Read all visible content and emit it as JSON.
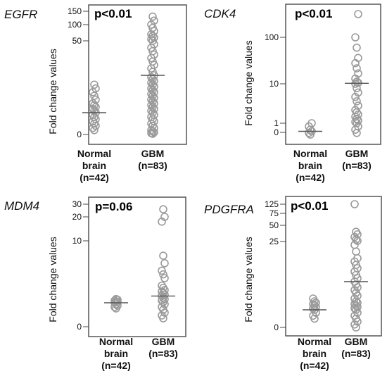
{
  "y_axis_label": "Fold change values",
  "chart_data": [
    {
      "type": "scatter",
      "gene": "EGFR",
      "p_value": "p<0.01",
      "ylabel": "Fold change values",
      "y_ticks": [
        "150",
        "100",
        "50",
        "0"
      ],
      "groups": [
        {
          "label": [
            "Normal",
            "brain",
            "(n=42)"
          ],
          "median": 10,
          "values": [
            2,
            3,
            4,
            5,
            6,
            7,
            8,
            9,
            10,
            11,
            12,
            13,
            14,
            15,
            17,
            19,
            21,
            23,
            25
          ]
        },
        {
          "label": [
            "GBM",
            "(n=83)"
          ],
          "median": 30,
          "values": [
            0.3,
            0.6,
            1,
            1.5,
            2,
            3,
            4,
            5,
            6,
            7,
            8,
            9,
            10,
            11,
            12,
            13,
            14,
            15,
            16,
            17,
            18,
            19,
            20,
            21,
            22,
            23,
            24,
            25,
            26,
            27,
            28,
            29,
            30,
            32,
            34,
            36,
            38,
            40,
            42,
            44,
            46,
            48,
            50,
            55,
            60,
            65,
            70,
            80,
            90,
            100,
            115,
            130
          ]
        }
      ]
    },
    {
      "type": "scatter",
      "gene": "CDK4",
      "p_value": "p<0.01",
      "ylabel": "Fold change values",
      "y_ticks": [
        "100",
        "10",
        "1",
        "0"
      ],
      "groups": [
        {
          "label": [
            "Normal",
            "brain",
            "(n=42)"
          ],
          "median": 0.5,
          "values": [
            0.3,
            0.4,
            0.5,
            0.6,
            0.8,
            1
          ]
        },
        {
          "label": [
            "GBM",
            "(n=83)"
          ],
          "median": 11,
          "values": [
            0.4,
            0.6,
            0.8,
            1,
            1.3,
            1.6,
            2,
            2.5,
            3,
            3.5,
            4,
            5,
            6,
            7,
            8,
            9,
            10,
            12,
            14,
            20,
            30,
            40,
            50,
            60,
            80,
            100,
            300
          ]
        }
      ]
    },
    {
      "type": "scatter",
      "gene": "MDM4",
      "p_value": "p=0.06",
      "ylabel": "Fold change values",
      "y_ticks": [
        "30",
        "20",
        "10",
        "0"
      ],
      "groups": [
        {
          "label": [
            "Normal",
            "brain",
            "(n=42)"
          ],
          "median": 1.7,
          "values": [
            1.3,
            1.4,
            1.5,
            1.6,
            1.7,
            1.8,
            1.9,
            2.0,
            2.1,
            2.2
          ]
        },
        {
          "label": [
            "GBM",
            "(n=83)"
          ],
          "median": 2.6,
          "values": [
            0.6,
            0.8,
            1.0,
            1.2,
            1.4,
            1.6,
            1.8,
            2.0,
            2.2,
            2.4,
            2.6,
            2.8,
            3.0,
            3.2,
            3.4,
            3.7,
            4.0,
            5.0,
            5.5,
            6.0,
            7.0,
            8.0,
            18,
            20,
            26
          ]
        }
      ]
    },
    {
      "type": "scatter",
      "gene": "PDGFRA",
      "p_value": "p<0.01",
      "ylabel": "Fold change values",
      "y_ticks": [
        "125",
        "75",
        "50",
        "25",
        "0"
      ],
      "groups": [
        {
          "label": [
            "Normal",
            "brain",
            "(n=42)"
          ],
          "median": 3,
          "values": [
            1.5,
            2,
            2.5,
            3,
            3.5,
            4,
            4.5,
            5,
            5.5,
            6,
            7
          ]
        },
        {
          "label": [
            "GBM",
            "(n=83)"
          ],
          "median": 13,
          "values": [
            0,
            0.5,
            1,
            1.5,
            2,
            2.5,
            3,
            3.5,
            4,
            4.5,
            5,
            5.5,
            6,
            7,
            8,
            9,
            10,
            11,
            12,
            13,
            14,
            15,
            16,
            17,
            18,
            19,
            20,
            22,
            24,
            26,
            28,
            32,
            36,
            40,
            125
          ]
        }
      ]
    }
  ]
}
